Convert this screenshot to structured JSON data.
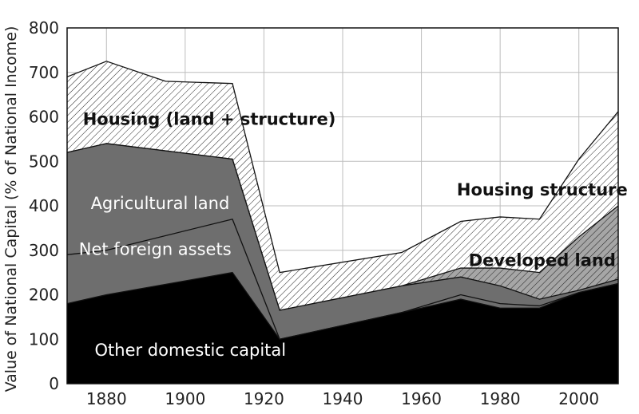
{
  "chart_data": {
    "type": "area",
    "stacked": true,
    "ylabel": "Value of National Capital (% of National Income)",
    "xlabel": "",
    "xlim": [
      1870,
      2010
    ],
    "ylim": [
      0,
      800
    ],
    "x_ticks": [
      1880,
      1900,
      1920,
      1940,
      1960,
      1980,
      2000
    ],
    "y_ticks": [
      0,
      100,
      200,
      300,
      400,
      500,
      600,
      700,
      800
    ],
    "grid": true,
    "legend": "none",
    "series": [
      {
        "name": "Other domestic capital",
        "fill": "#000000",
        "points": [
          [
            1870,
            180
          ],
          [
            1880,
            200
          ],
          [
            1912,
            250
          ],
          [
            1924,
            100
          ],
          [
            1955,
            160
          ],
          [
            1970,
            190
          ],
          [
            1980,
            170
          ],
          [
            1990,
            170
          ],
          [
            2000,
            205
          ],
          [
            2010,
            225
          ]
        ]
      },
      {
        "name": "Net foreign assets",
        "fill": "#6e6e6e",
        "points": [
          [
            1870,
            290
          ],
          [
            1880,
            300
          ],
          [
            1912,
            370
          ],
          [
            1924,
            100
          ],
          [
            1955,
            160
          ],
          [
            1970,
            200
          ],
          [
            1980,
            180
          ],
          [
            1990,
            175
          ],
          [
            2000,
            205
          ],
          [
            2010,
            225
          ]
        ]
      },
      {
        "name": "Agricultural land",
        "fill": "#6e6e6e",
        "points": [
          [
            1870,
            520
          ],
          [
            1880,
            540
          ],
          [
            1912,
            505
          ],
          [
            1924,
            165
          ],
          [
            1955,
            220
          ],
          [
            1970,
            240
          ],
          [
            1980,
            220
          ],
          [
            1990,
            190
          ],
          [
            2000,
            210
          ],
          [
            2010,
            235
          ]
        ]
      },
      {
        "name": "Developed land",
        "fill": "#a6a6a6",
        "hatched": true,
        "points": [
          [
            1870,
            520
          ],
          [
            1880,
            540
          ],
          [
            1912,
            505
          ],
          [
            1924,
            165
          ],
          [
            1955,
            220
          ],
          [
            1970,
            260
          ],
          [
            1980,
            260
          ],
          [
            1990,
            250
          ],
          [
            2000,
            330
          ],
          [
            2010,
            400
          ]
        ]
      },
      {
        "name": "Housing structure",
        "fill": "#ffffff",
        "hatched": true,
        "points": [
          [
            1870,
            690
          ],
          [
            1880,
            725
          ],
          [
            1895,
            680
          ],
          [
            1912,
            675
          ],
          [
            1924,
            250
          ],
          [
            1955,
            295
          ],
          [
            1970,
            365
          ],
          [
            1980,
            375
          ],
          [
            1990,
            370
          ],
          [
            2000,
            505
          ],
          [
            2010,
            612
          ]
        ]
      }
    ],
    "annotations": [
      {
        "text": "Housing (land + structure)",
        "x": 1874,
        "y": 582,
        "style": "bold"
      },
      {
        "text": "Agricultural land",
        "x": 1876,
        "y": 393,
        "style": "light"
      },
      {
        "text": "Net foreign assets",
        "x": 1873,
        "y": 290,
        "style": "light"
      },
      {
        "text": "Other domestic capital",
        "x": 1877,
        "y": 63,
        "style": "light"
      },
      {
        "text": "Housing structure",
        "x": 1969,
        "y": 423,
        "style": "bold"
      },
      {
        "text": "Developed land",
        "x": 1972,
        "y": 265,
        "style": "bold"
      }
    ]
  }
}
